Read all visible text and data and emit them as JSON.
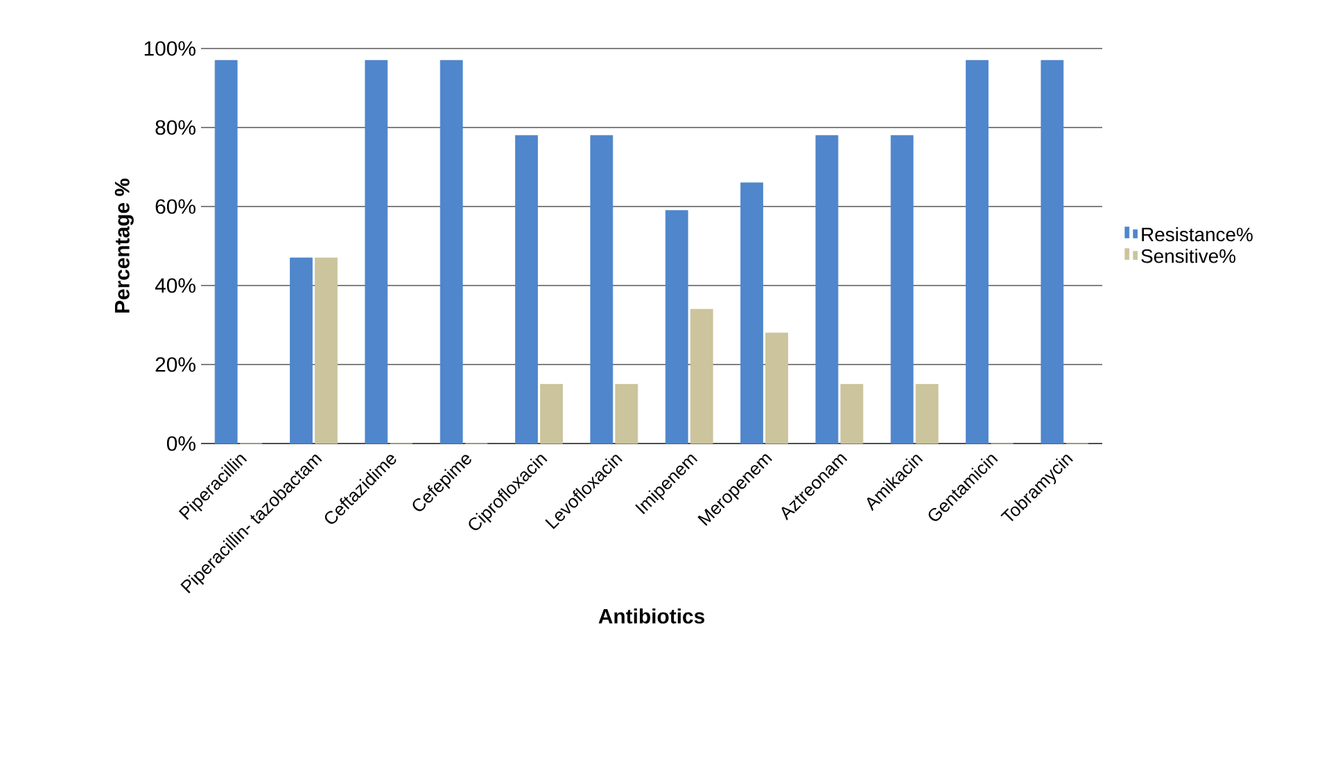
{
  "chart_data": {
    "type": "bar",
    "xlabel": "Antibiotics",
    "ylabel": "Percentage %",
    "categories": [
      "Piperacillin",
      "Piperacillin- tazobactam",
      "Ceftazidime",
      "Cefepime",
      "Ciprofloxacin",
      "Levofloxacin",
      "Imipenem",
      "Meropenem",
      "Aztreonam",
      "Amikacin",
      "Gentamicin",
      "Tobramycin"
    ],
    "series": [
      {
        "name": "Resistance%",
        "color": "#4f86cc",
        "values": [
          97,
          47,
          97,
          97,
          78,
          78,
          59,
          66,
          78,
          78,
          97,
          97
        ]
      },
      {
        "name": "Sensitive%",
        "color": "#cbc49c",
        "values": [
          0,
          47,
          0,
          0,
          15,
          15,
          34,
          28,
          15,
          15,
          0,
          0
        ]
      }
    ],
    "ylim": [
      0,
      100
    ],
    "yticks": [
      {
        "value": 0,
        "label": "0%"
      },
      {
        "value": 20,
        "label": "20%"
      },
      {
        "value": 40,
        "label": "40%"
      },
      {
        "value": 60,
        "label": "60%"
      },
      {
        "value": 80,
        "label": "80%"
      },
      {
        "value": 100,
        "label": "100%"
      }
    ],
    "grid": "y",
    "legend": "right"
  }
}
